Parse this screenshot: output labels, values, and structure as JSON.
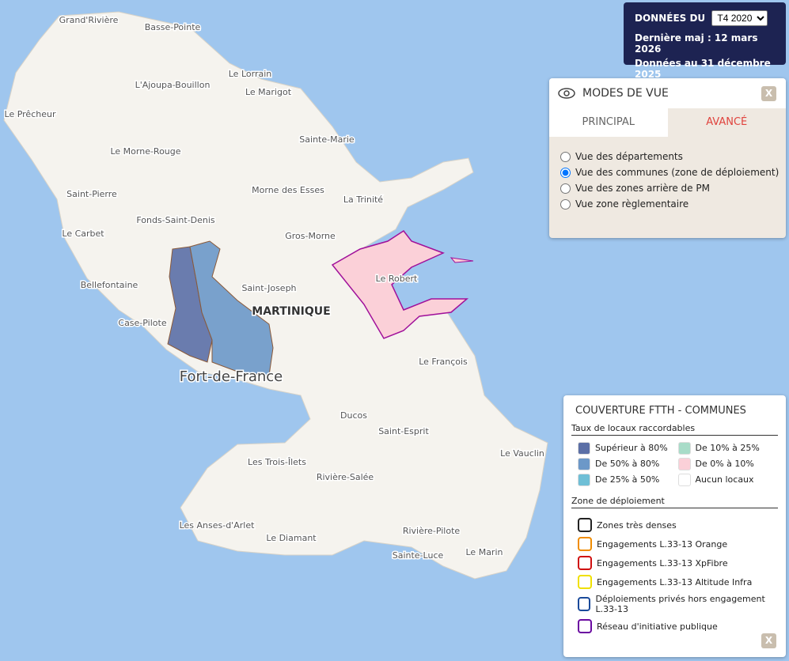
{
  "header": {
    "label": "DONNÉES DU",
    "select": "T4 2020",
    "updated": "Dernière maj : 12 mars 2026",
    "data_date": "Données au 31 décembre 2025"
  },
  "view_modes": {
    "title": "MODES DE VUE",
    "close": "X",
    "tabs": [
      "PRINCIPAL",
      "AVANCÉ"
    ],
    "active_tab": 1,
    "options": [
      "Vue des départements",
      "Vue des communes (zone de déploiement)",
      "Vue des zones arrière de PM",
      "Vue zone règlementaire"
    ],
    "selected": 1
  },
  "map_labels": [
    "Grand'Rivière",
    "Basse-Pointe",
    "Le Lorrain",
    "L'Ajoupa-Bouillon",
    "Le Marigot",
    "Le Prêcheur",
    "Sainte-Marie",
    "Le Morne-Rouge",
    "Morne des Esses",
    "Saint-Pierre",
    "La Trinité",
    "Fonds-Saint-Denis",
    "Le Carbet",
    "Gros-Morne",
    "Le Robert",
    "Saint-Joseph",
    "Bellefontaine",
    "MARTINIQUE",
    "Case-Pilote",
    "Fort-de-France",
    "Le François",
    "Ducos",
    "Saint-Esprit",
    "Le Vauclin",
    "Les Trois-Îlets",
    "Rivière-Salée",
    "Les Anses-d'Arlet",
    "Le Diamant",
    "Rivière-Pilote",
    "Sainte-Luce",
    "Le Marin"
  ],
  "legend": {
    "title": "COUVERTURE FTTH - COMMUNES",
    "section1": "Taux de locaux raccordables",
    "rates": [
      {
        "label": "Supérieur à 80%",
        "color": "#5b6fa6"
      },
      {
        "label": "De 10% à 25%",
        "color": "#a8dcc8"
      },
      {
        "label": "De 50% à 80%",
        "color": "#6c98c8"
      },
      {
        "label": "De 0% à 10%",
        "color": "#fbd0d8"
      },
      {
        "label": "De 25% à 50%",
        "color": "#6fbfd6"
      },
      {
        "label": "Aucun locaux",
        "color": "#ffffff"
      }
    ],
    "section2": "Zone de déploiement",
    "zones": [
      {
        "label": "Zones très denses",
        "color": "#222222"
      },
      {
        "label": "Engagements L.33-13 Orange",
        "color": "#f08c00"
      },
      {
        "label": "Engagements L.33-13 XpFibre",
        "color": "#d01010"
      },
      {
        "label": "Engagements L.33-13 Altitude Infra",
        "color": "#f0e000"
      },
      {
        "label": "Déploiements privés hors engagement L.33-13",
        "color": "#1a4a9a"
      },
      {
        "label": "Réseau d'initiative publique",
        "color": "#6a0aa0"
      }
    ],
    "close": "X"
  }
}
